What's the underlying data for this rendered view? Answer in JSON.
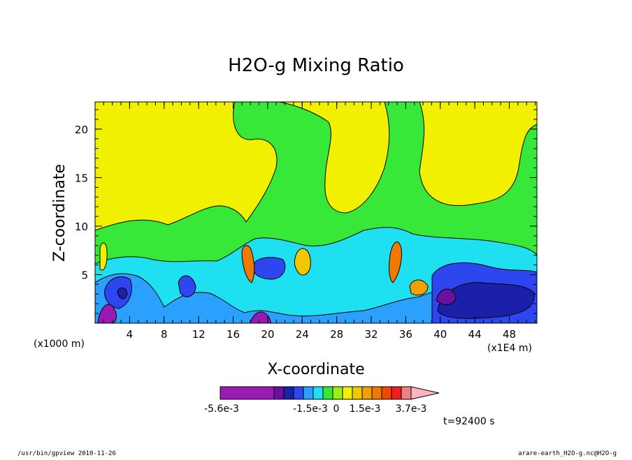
{
  "chart_data": {
    "type": "heatmap",
    "title": "H2O-g Mixing Ratio",
    "xlabel": "X-coordinate",
    "ylabel": "Z-coordinate",
    "x_unit_left": "(x1000 m)",
    "x_unit_right": "(x1E4 m)",
    "xticks": [
      "4",
      "8",
      "12",
      "16",
      "20",
      "24",
      "28",
      "32",
      "36",
      "40",
      "44",
      "48"
    ],
    "yticks": [
      "5",
      "10",
      "15",
      "20"
    ],
    "xlim": [
      0,
      51.2
    ],
    "ylim": [
      0,
      22.8
    ],
    "colorbar": {
      "colors": [
        "#9a1ab4",
        "#6a10a0",
        "#1a20a8",
        "#2d46f0",
        "#2aa0ff",
        "#1ee0f0",
        "#38e838",
        "#9aee10",
        "#f0f000",
        "#f0c800",
        "#f0a000",
        "#f07a00",
        "#f04800",
        "#f01e1e",
        "#f08080",
        "#ffb4c0"
      ],
      "labels": [
        "-5.6e-3",
        "-1.5e-3",
        "0",
        "1.5e-3",
        "3.7e-3"
      ]
    },
    "annotation": "t=92400 s"
  },
  "footer": {
    "left": "/usr/bin/gpview  2010-11-26",
    "right": "arare-earth_H2O-g.nc@H2O-g"
  }
}
